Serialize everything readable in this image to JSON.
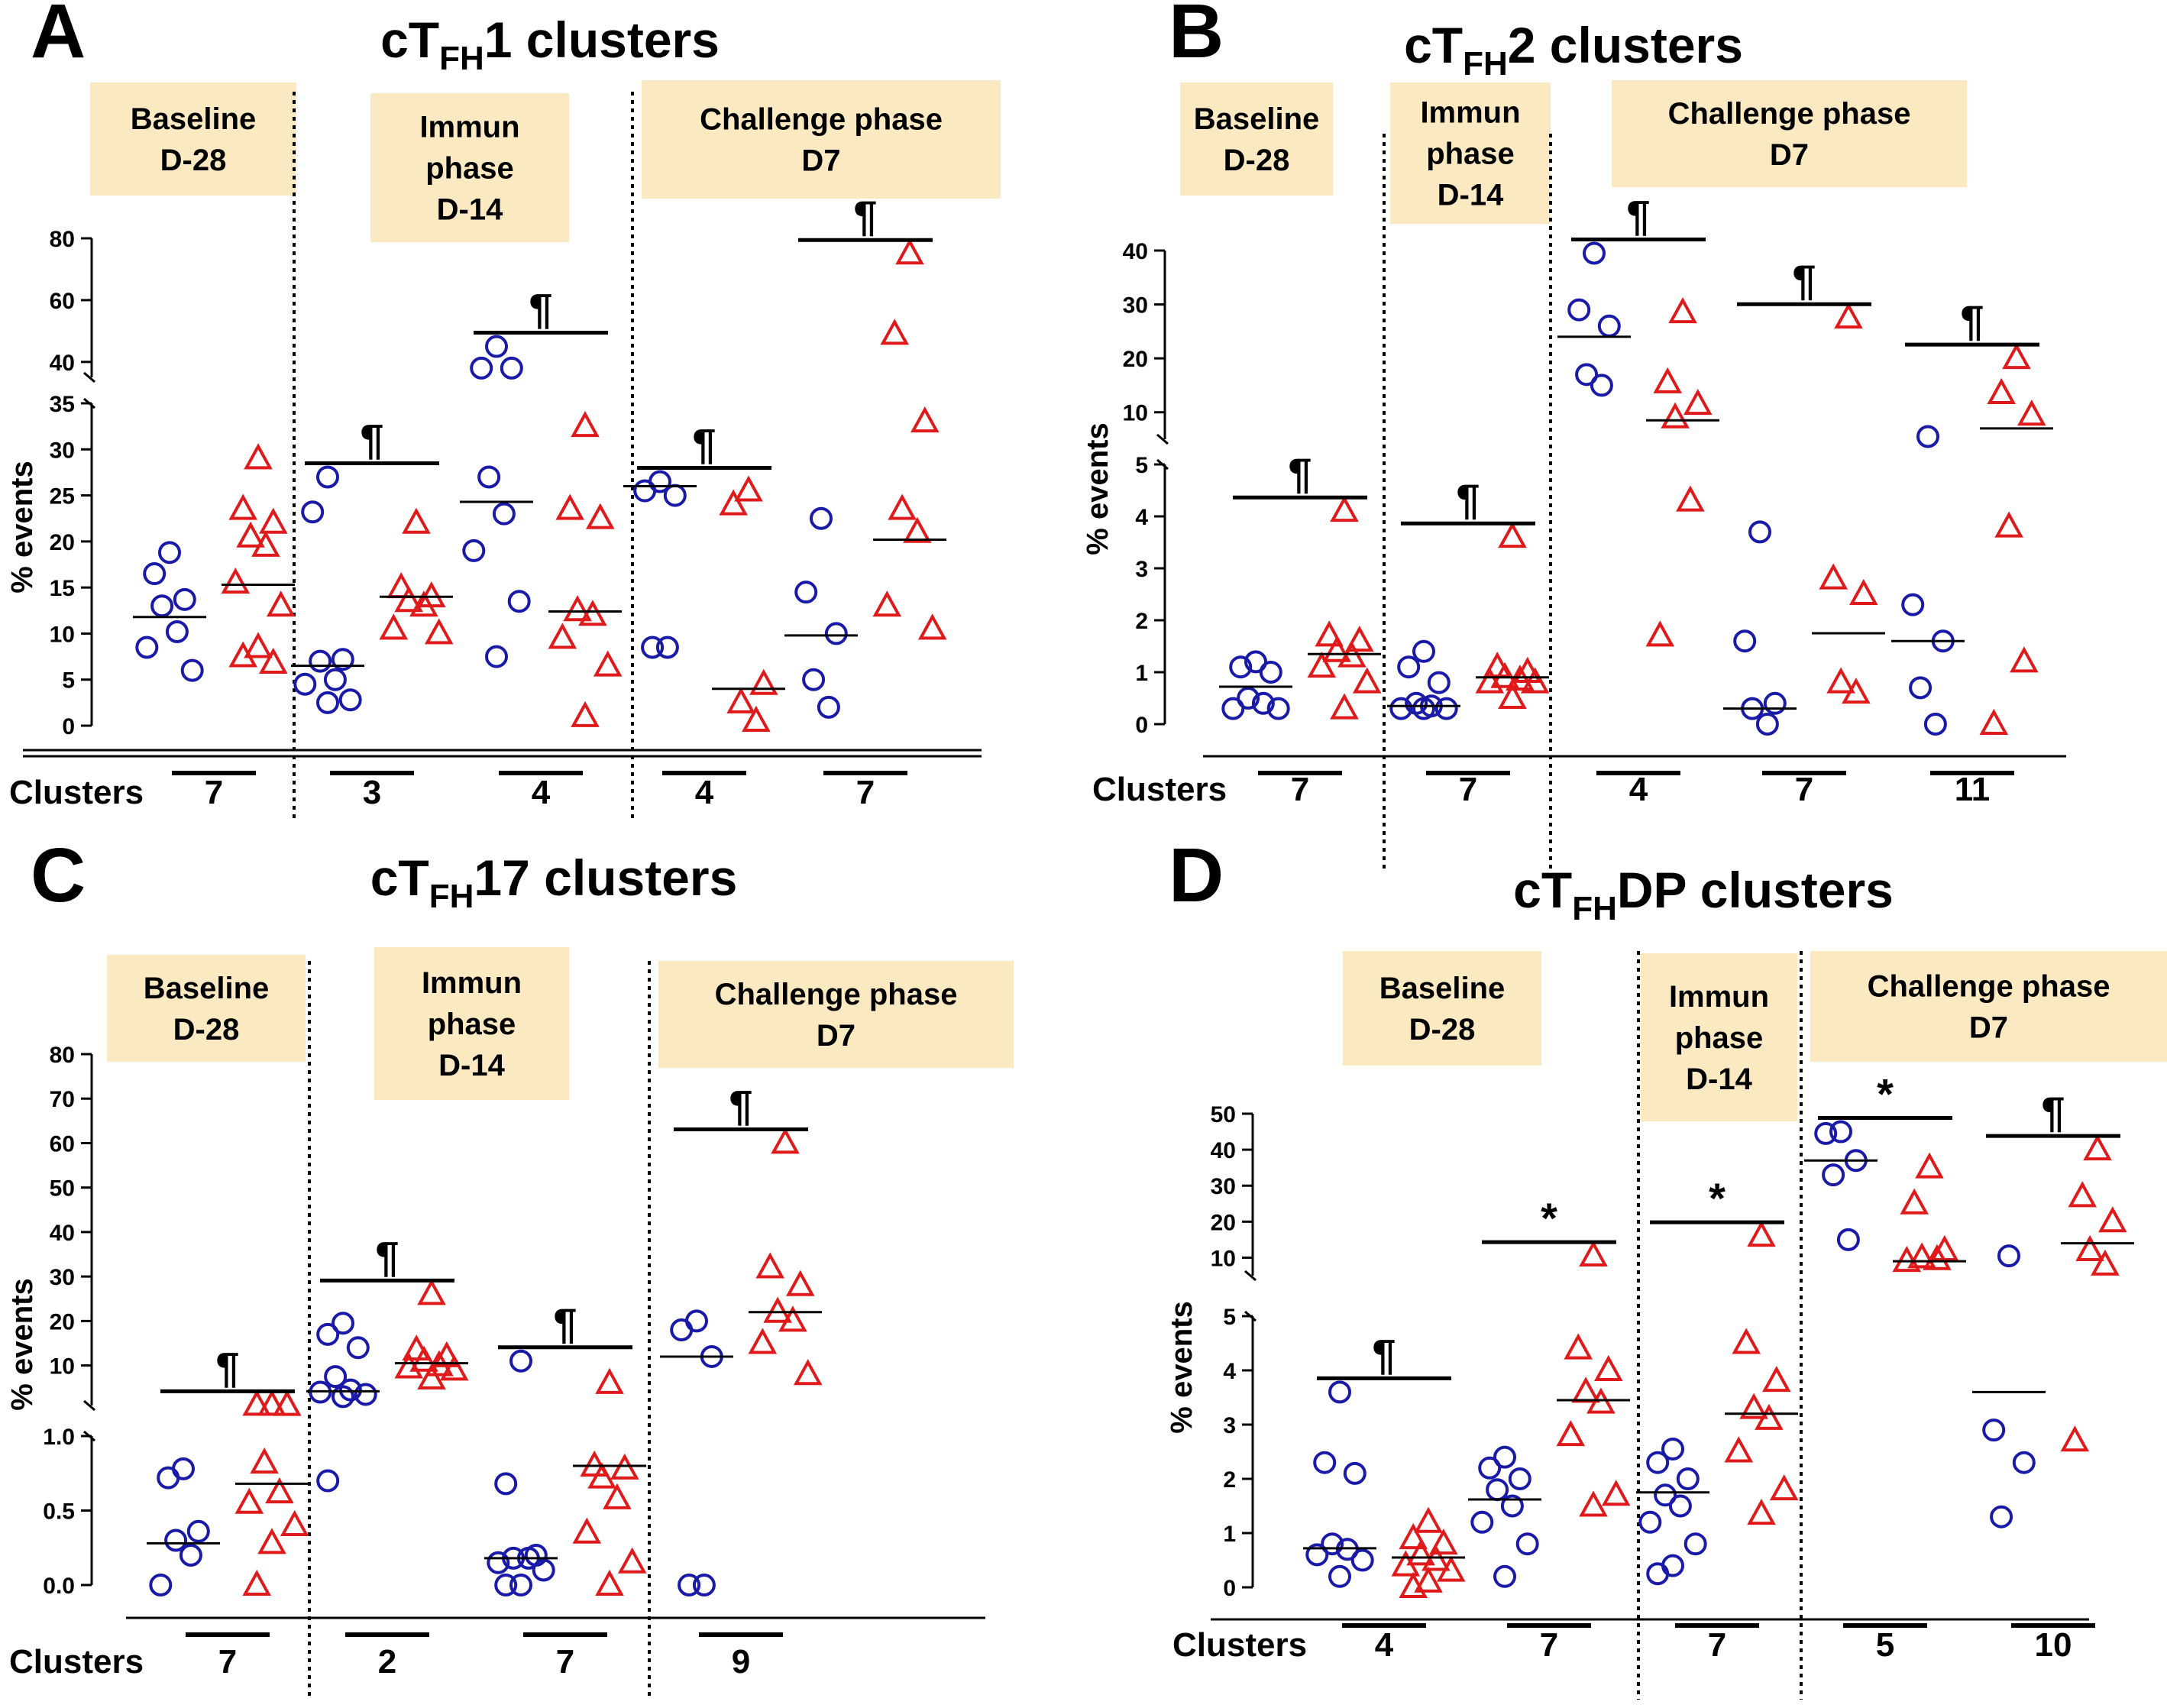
{
  "colors": {
    "group1": "#1a1aa8",
    "group2": "#e01a1a",
    "phase_box": "#fbe9c2",
    "axis": "#000000"
  },
  "chart_data": [
    {
      "type": "scatter",
      "panel_letter": "A",
      "title_prefix": "cT",
      "title_subscript": "FH",
      "title_suffix": "1 clusters",
      "ylabel": "% events",
      "row_label": "Clusters",
      "y_axis_broken": true,
      "y_lower": {
        "range": [
          0,
          35
        ],
        "ticks": [
          "0",
          "5",
          "10",
          "15",
          "20",
          "25",
          "30",
          "35"
        ]
      },
      "y_upper": {
        "range": [
          35,
          80
        ],
        "ticks": [
          "40",
          "60",
          "80"
        ]
      },
      "phases": [
        {
          "label": [
            "Baseline",
            "D-28"
          ]
        },
        {
          "label": [
            "Immun",
            "phase",
            "D-14"
          ]
        },
        {
          "label": [
            "Challenge phase",
            "D7"
          ]
        }
      ],
      "groups": [
        {
          "cluster": "7",
          "phase": 0,
          "circles": [
            18.8,
            16.5,
            13.7,
            13,
            10.2,
            8.5,
            6
          ],
          "circle_median": 11.8,
          "triangles": [
            29,
            23.5,
            22,
            20.5,
            19.5,
            15.5,
            13,
            8.5,
            7.5,
            6.8
          ],
          "triangle_median": 15.3,
          "significance": ""
        },
        {
          "cluster": "3",
          "phase": 1,
          "circles": [
            27,
            23.2,
            7.2,
            7,
            5,
            4.5,
            2.8,
            2.5
          ],
          "circle_median": 6.5,
          "triangles": [
            22,
            15,
            14,
            13.5,
            13,
            10.5,
            10
          ],
          "triangle_median": 14,
          "significance": "¶"
        },
        {
          "cluster": "4",
          "phase": 1,
          "circles": [
            45,
            38,
            38,
            27,
            23,
            19,
            13.5,
            7.5
          ],
          "circle_median": 24.3,
          "triangles": [
            32.5,
            23.5,
            22.5,
            12.5,
            12,
            9.5,
            6.5,
            1
          ],
          "triangle_median": 12.4,
          "significance": "¶"
        },
        {
          "cluster": "4",
          "phase": 2,
          "circles": [
            26.5,
            25.5,
            25,
            8.5,
            8.5
          ],
          "circle_median": 26,
          "triangles": [
            25.5,
            24,
            4.5,
            2.5,
            0.5
          ],
          "triangle_median": 4,
          "significance": "¶"
        },
        {
          "cluster": "7",
          "phase": 2,
          "circles": [
            22.5,
            14.5,
            10,
            5,
            2
          ],
          "circle_median": 9.8,
          "triangles": [
            75,
            49,
            33,
            23.5,
            21,
            13,
            10.5
          ],
          "triangle_median": 20.2,
          "significance": "¶"
        }
      ]
    },
    {
      "type": "scatter",
      "panel_letter": "B",
      "title_prefix": "cT",
      "title_subscript": "FH",
      "title_suffix": "2 clusters",
      "ylabel": "% events",
      "row_label": "Clusters",
      "y_axis_broken": true,
      "y_lower": {
        "range": [
          0,
          5
        ],
        "ticks": [
          "0",
          "1",
          "2",
          "3",
          "4",
          "5"
        ]
      },
      "y_upper": {
        "range": [
          5,
          40
        ],
        "ticks": [
          "10",
          "20",
          "30",
          "40"
        ]
      },
      "phases": [
        {
          "label": [
            "Baseline",
            "D-28"
          ]
        },
        {
          "label": [
            "Immun",
            "phase",
            "D-14"
          ]
        },
        {
          "label": [
            "Challenge phase",
            "D7"
          ]
        }
      ],
      "groups": [
        {
          "cluster": "7",
          "phase": 0,
          "circles": [
            1.2,
            1.1,
            1,
            0.5,
            0.4,
            0.3,
            0.3
          ],
          "circle_median": 0.72,
          "triangles": [
            4.1,
            1.7,
            1.6,
            1.4,
            1.3,
            1.1,
            0.8,
            0.3
          ],
          "triangle_median": 1.35,
          "significance": "¶"
        },
        {
          "cluster": "7",
          "phase": 1,
          "circles": [
            1.4,
            1.1,
            0.8,
            0.4,
            0.35,
            0.3,
            0.3,
            0.3
          ],
          "circle_median": 0.35,
          "triangles": [
            3.6,
            1.1,
            1,
            0.9,
            0.85,
            0.8,
            0.8,
            0.5
          ],
          "triangle_median": 0.9,
          "significance": "¶"
        },
        {
          "cluster": "4",
          "phase": 2,
          "circles": [
            39.5,
            29,
            26,
            17,
            15
          ],
          "circle_median": 24,
          "triangles": [
            28.5,
            15.5,
            11.5,
            9,
            4.3,
            1.7
          ],
          "triangle_median": 8.5,
          "significance": "¶"
        },
        {
          "cluster": "7",
          "phase": 2,
          "circles": [
            3.7,
            1.6,
            0.4,
            0.3,
            0
          ],
          "circle_median": 0.3,
          "triangles": [
            27.5,
            2.8,
            2.5,
            0.8,
            0.6
          ],
          "triangle_median": 1.75,
          "significance": "¶"
        },
        {
          "cluster": "11",
          "phase": 2,
          "circles": [
            5.5,
            2.3,
            1.6,
            0.7,
            0
          ],
          "circle_median": 1.6,
          "triangles": [
            20,
            13.5,
            9.5,
            3.8,
            1.2,
            0
          ],
          "triangle_median": 7,
          "significance": "¶"
        }
      ]
    },
    {
      "type": "scatter",
      "panel_letter": "C",
      "title_prefix": "cT",
      "title_subscript": "FH",
      "title_suffix": "17 clusters",
      "ylabel": "% events",
      "row_label": "Clusters",
      "y_axis_broken": true,
      "y_lower": {
        "range": [
          0,
          1
        ],
        "ticks": [
          "0.0",
          "0.5",
          "1.0"
        ]
      },
      "y_upper": {
        "range": [
          1,
          80
        ],
        "ticks": [
          "10",
          "20",
          "30",
          "40",
          "50",
          "60",
          "70",
          "80"
        ]
      },
      "phases": [
        {
          "label": [
            "Baseline",
            "D-28"
          ]
        },
        {
          "label": [
            "Immun",
            "phase",
            "D-14"
          ]
        },
        {
          "label": [
            "Challenge phase",
            "D7"
          ]
        }
      ],
      "groups": [
        {
          "cluster": "7",
          "phase": 0,
          "circles": [
            0.78,
            0.72,
            0.36,
            0.3,
            0.2,
            0
          ],
          "circle_median": 0.28,
          "triangles": [
            1.1,
            1.1,
            1.05,
            0.82,
            0.62,
            0.55,
            0.4,
            0.28,
            0
          ],
          "triangle_median": 0.68,
          "significance": "¶"
        },
        {
          "cluster": "2",
          "phase": 1,
          "circles": [
            19.5,
            17,
            14,
            7.5,
            4.5,
            4,
            3.5,
            3,
            0.7
          ],
          "circle_median": 4.2,
          "triangles": [
            26,
            13.5,
            12,
            11,
            10,
            9.5,
            9,
            7
          ],
          "triangle_median": 10.5,
          "significance": "¶"
        },
        {
          "cluster": "7",
          "phase": 1,
          "circles": [
            11,
            0.68,
            0.2,
            0.18,
            0.18,
            0.15,
            0.1,
            0,
            0
          ],
          "circle_median": 0.18,
          "triangles": [
            6,
            0.8,
            0.78,
            0.72,
            0.58,
            0.35,
            0.15,
            0
          ],
          "triangle_median": 0.8,
          "significance": "¶"
        },
        {
          "cluster": "9",
          "phase": 2,
          "circles": [
            20,
            18,
            12,
            0,
            0
          ],
          "circle_median": 12,
          "triangles": [
            60,
            32,
            28,
            22,
            20,
            15,
            8
          ],
          "triangle_median": 22,
          "significance": "¶"
        }
      ]
    },
    {
      "type": "scatter",
      "panel_letter": "D",
      "title_prefix": "cT",
      "title_subscript": "FH",
      "title_suffix": "DP clusters",
      "ylabel": "% events",
      "row_label": "Clusters",
      "y_axis_broken": true,
      "y_lower": {
        "range": [
          0,
          5
        ],
        "ticks": [
          "0",
          "1",
          "2",
          "3",
          "4",
          "5"
        ]
      },
      "y_upper": {
        "range": [
          5,
          50
        ],
        "ticks": [
          "10",
          "20",
          "30",
          "40",
          "50"
        ]
      },
      "phases": [
        {
          "label": [
            "Baseline",
            "D-28"
          ]
        },
        {
          "label": [
            "Immun",
            "phase",
            "D-14"
          ]
        },
        {
          "label": [
            "Challenge phase",
            "D7"
          ]
        }
      ],
      "groups": [
        {
          "cluster": "4",
          "phase": 0,
          "circles": [
            3.6,
            2.3,
            2.1,
            0.8,
            0.7,
            0.6,
            0.5,
            0.2
          ],
          "circle_median": 0.72,
          "triangles": [
            1.2,
            0.9,
            0.8,
            0.6,
            0.5,
            0.4,
            0.3,
            0.1,
            0
          ],
          "triangle_median": 0.55,
          "significance": "¶"
        },
        {
          "cluster": "7",
          "phase": 0,
          "circles": [
            2.4,
            2.2,
            2,
            1.8,
            1.5,
            1.2,
            0.8,
            0.2
          ],
          "circle_median": 1.62,
          "triangles": [
            10.5,
            4.4,
            4,
            3.6,
            3.4,
            2.8,
            1.7,
            1.5
          ],
          "triangle_median": 3.45,
          "significance": "*"
        },
        {
          "cluster": "7",
          "phase": 1,
          "circles": [
            2.55,
            2.3,
            2,
            1.7,
            1.5,
            1.2,
            0.8,
            0.4,
            0.25
          ],
          "circle_median": 1.75,
          "triangles": [
            16,
            4.5,
            3.8,
            3.3,
            3.1,
            2.5,
            1.8,
            1.35
          ],
          "triangle_median": 3.2,
          "significance": "*"
        },
        {
          "cluster": "5",
          "phase": 2,
          "circles": [
            45,
            44.5,
            37,
            33,
            15
          ],
          "circle_median": 37,
          "triangles": [
            35,
            25,
            12,
            10,
            9.5,
            9
          ],
          "triangle_median": 9,
          "significance": "*"
        },
        {
          "cluster": "10",
          "phase": 2,
          "circles": [
            10.5,
            2.9,
            2.3,
            1.3
          ],
          "circle_median": 3.6,
          "triangles": [
            40,
            27,
            20,
            12,
            8,
            2.7
          ],
          "triangle_median": 14,
          "significance": "¶"
        }
      ]
    }
  ]
}
